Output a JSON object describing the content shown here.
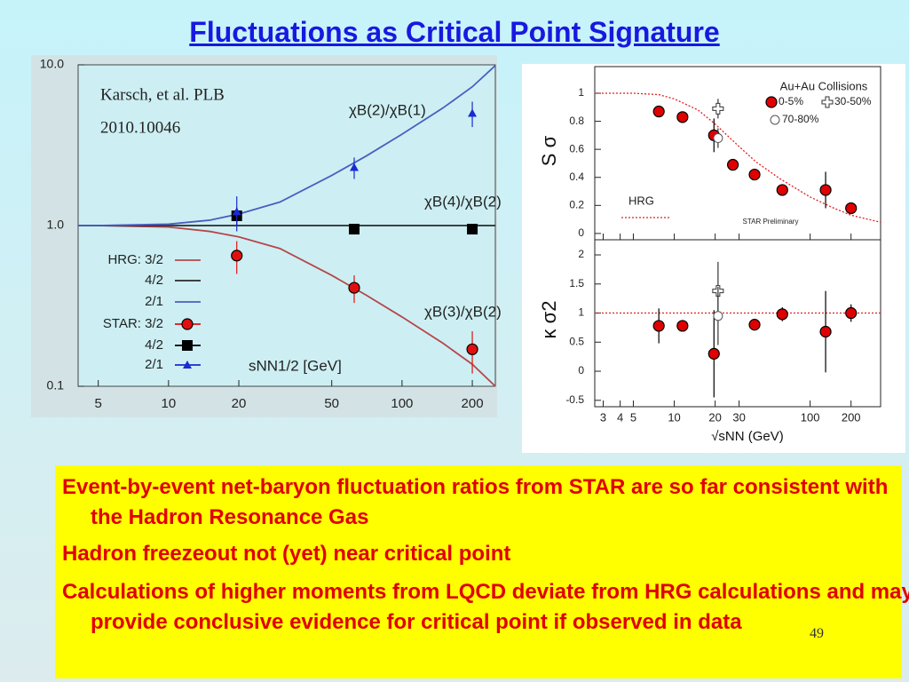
{
  "title": "Fluctuations as Critical Point Signature",
  "bullets": [
    "Event-by-event net-baryon fluctuation ratios from STAR are so far consistent with the Hadron Resonance Gas",
    "Hadron freezeout not (yet) near critical point",
    "Calculations of higher moments from LQCD deviate from HRG calculations and may provide conclusive evidence for critical point if observed in data"
  ],
  "page_number": "49",
  "chart_data": [
    {
      "type": "line",
      "xlog": true,
      "ylog": true,
      "xlim": [
        4.1,
        251
      ],
      "ylim": [
        0.1,
        10
      ],
      "xticks": [
        5,
        10,
        20,
        50,
        100,
        200
      ],
      "yticks": [
        0.1,
        {
          "value": 1,
          "label": "1.0"
        },
        {
          "value": 10,
          "label": "10.0"
        }
      ],
      "x_label": "sNN1/2 [GeV]",
      "annotations": [
        "Karsch, et al. PLB",
        "2010.10046",
        "χB(2)/χB(1)",
        "χB(4)/χB(2)",
        "χB(3)/χB(2)"
      ],
      "series": [
        {
          "name": "HRG: 3/2",
          "color": "#b5474b",
          "style": "line",
          "x": [
            4.1,
            5,
            10,
            15,
            20,
            30,
            50,
            70,
            100,
            150,
            200,
            251
          ],
          "values": [
            1,
            1,
            0.98,
            0.92,
            0.85,
            0.72,
            0.49,
            0.37,
            0.27,
            0.185,
            0.137,
            0.1
          ]
        },
        {
          "name": "4/2",
          "color": "#2a2a2a",
          "style": "line",
          "x": [
            4.1,
            251
          ],
          "values": [
            1,
            1
          ]
        },
        {
          "name": "2/1",
          "color": "#4a5fc0",
          "style": "line",
          "x": [
            4.1,
            5,
            10,
            15,
            20,
            30,
            50,
            70,
            100,
            150,
            200,
            251
          ],
          "values": [
            1,
            1,
            1.02,
            1.08,
            1.18,
            1.4,
            2.05,
            2.7,
            3.7,
            5.4,
            7.3,
            9.9
          ]
        },
        {
          "name": "STAR: 3/2",
          "color": "#e01010",
          "marker": "circle",
          "x": [
            19.6,
            62.4,
            200
          ],
          "values": [
            0.65,
            0.41,
            0.17
          ],
          "errors": [
            0.15,
            0.08,
            0.05
          ]
        },
        {
          "name": "4/2",
          "color": "#000000",
          "marker": "square",
          "x": [
            19.6,
            62.4,
            200
          ],
          "values": [
            1.15,
            0.95,
            0.95
          ],
          "errors": [
            0.15,
            0.05,
            0.05
          ]
        },
        {
          "name": "2/1",
          "color": "#1a2ad0",
          "marker": "triangle",
          "x": [
            19.6,
            62.4,
            200
          ],
          "values": [
            1.22,
            2.3,
            5
          ],
          "errors": [
            0.3,
            0.35,
            0.9
          ]
        }
      ]
    },
    {
      "type": "scatter",
      "xlog": true,
      "xlim": [
        2.6,
        330
      ],
      "ylim": [
        -0.045,
        1.19
      ],
      "yticks": [
        0,
        0.2,
        0.4,
        0.6,
        0.8,
        1
      ],
      "y_label": "S σ",
      "title": "Au+Au Collisions",
      "annotation": "STAR Preliminary",
      "series": [
        {
          "name": "HRG",
          "color": "#e02020",
          "style": "dotted",
          "x": [
            2.6,
            5,
            7.7,
            10,
            15,
            20,
            30,
            40,
            60,
            100,
            150,
            200,
            330
          ],
          "values": [
            1,
            1,
            0.99,
            0.96,
            0.88,
            0.78,
            0.62,
            0.51,
            0.39,
            0.26,
            0.18,
            0.13,
            0.08
          ]
        },
        {
          "name": "0-5%",
          "color": "#e00000",
          "marker": "circle",
          "x": [
            7.7,
            11.5,
            19.6,
            27,
            39,
            62.4,
            130,
            200
          ],
          "values": [
            0.87,
            0.83,
            0.7,
            0.49,
            0.42,
            0.31,
            0.31,
            0.18
          ],
          "errors": [
            0.02,
            0.02,
            0.12,
            0.02,
            0.02,
            0.02,
            0.13,
            0.02
          ]
        },
        {
          "name": "30-50%",
          "color": "#ffffff",
          "marker": "cross",
          "x": [
            21
          ],
          "values": [
            0.89
          ],
          "errors": [
            0.07
          ]
        },
        {
          "name": "70-80%",
          "color": "#ffffff",
          "marker": "open-circle",
          "x": [
            21
          ],
          "values": [
            0.68
          ],
          "errors": [
            0.07
          ]
        }
      ]
    },
    {
      "type": "scatter",
      "xlog": true,
      "xlim": [
        2.6,
        330
      ],
      "ylim": [
        -0.61,
        2.26
      ],
      "xticks": [
        3,
        4,
        5,
        10,
        20,
        30,
        100,
        200
      ],
      "yticks": [
        -0.5,
        0,
        0.5,
        1,
        1.5,
        2
      ],
      "x_label": "√sNN (GeV)",
      "y_label": "κ σ2",
      "series": [
        {
          "color": "#e02020",
          "style": "dotted",
          "x": [
            2.6,
            330
          ],
          "values": [
            1,
            1
          ]
        },
        {
          "color": "#e00000",
          "marker": "circle",
          "x": [
            7.7,
            11.5,
            19.6,
            39,
            62.4,
            130,
            200
          ],
          "values": [
            0.78,
            0.78,
            0.3,
            0.8,
            0.98,
            0.68,
            1
          ],
          "errors": [
            0.3,
            0.1,
            0.75,
            0.1,
            0.12,
            0.7,
            0.15
          ]
        },
        {
          "color": "#ffffff",
          "marker": "cross",
          "x": [
            21
          ],
          "values": [
            1.38
          ],
          "errors": [
            0.5
          ]
        },
        {
          "color": "#ffffff",
          "marker": "open-circle",
          "x": [
            21
          ],
          "values": [
            0.95
          ],
          "errors": [
            0.5
          ]
        }
      ]
    }
  ]
}
